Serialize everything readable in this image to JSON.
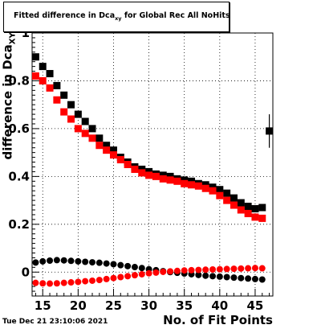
{
  "header": {
    "title_main": "Fitted difference in Dca",
    "title_sub": "xy",
    "title_rest": "for Global Rec All NoHits"
  },
  "footer": {
    "timestamp": "Tue Dec 21 23:10:06 2021"
  },
  "axes": {
    "ylabel_main": "difference in Dca",
    "ylabel_sub": "XY",
    "xlabel": "No. of Fit Points"
  },
  "chart_data": {
    "type": "scatter",
    "xlim": [
      13.5,
      47.5
    ],
    "ylim": [
      -0.1,
      1.0
    ],
    "grid": true,
    "xticks": [
      15,
      20,
      25,
      30,
      35,
      40,
      45
    ],
    "xtick_labels": [
      "15",
      "20",
      "25",
      "30",
      "35",
      "40",
      "45"
    ],
    "yticks": [
      0,
      0.2,
      0.4,
      0.6,
      0.8,
      1.0
    ],
    "ytick_labels": [
      "0",
      "0.2",
      "0.4",
      "0.6",
      "0.8",
      "1"
    ],
    "x": [
      14,
      15,
      16,
      17,
      18,
      19,
      20,
      21,
      22,
      23,
      24,
      25,
      26,
      27,
      28,
      29,
      30,
      31,
      32,
      33,
      34,
      35,
      36,
      37,
      38,
      39,
      40,
      41,
      42,
      43,
      44,
      45,
      46
    ],
    "series": [
      {
        "color": "#000000",
        "marker": "square",
        "values": [
          0.9,
          0.86,
          0.83,
          0.78,
          0.74,
          0.7,
          0.66,
          0.63,
          0.6,
          0.56,
          0.53,
          0.51,
          0.48,
          0.46,
          0.44,
          0.43,
          0.42,
          0.41,
          0.405,
          0.4,
          0.39,
          0.385,
          0.38,
          0.37,
          0.365,
          0.355,
          0.345,
          0.33,
          0.31,
          0.29,
          0.275,
          0.265,
          0.27
        ]
      },
      {
        "color": "#ff0000",
        "marker": "square",
        "values": [
          0.82,
          0.8,
          0.77,
          0.72,
          0.67,
          0.64,
          0.6,
          0.58,
          0.56,
          0.53,
          0.51,
          0.49,
          0.47,
          0.45,
          0.43,
          0.415,
          0.405,
          0.4,
          0.39,
          0.385,
          0.38,
          0.37,
          0.365,
          0.36,
          0.35,
          0.34,
          0.32,
          0.3,
          0.28,
          0.26,
          0.245,
          0.23,
          0.225
        ]
      },
      {
        "color": "#000000",
        "marker": "circle",
        "values": [
          0.04,
          0.045,
          0.048,
          0.05,
          0.049,
          0.047,
          0.045,
          0.043,
          0.041,
          0.039,
          0.036,
          0.033,
          0.029,
          0.025,
          0.021,
          0.017,
          0.012,
          0.008,
          0.004,
          0.0,
          -0.003,
          -0.006,
          -0.009,
          -0.012,
          -0.015,
          -0.017,
          -0.019,
          -0.021,
          -0.023,
          -0.025,
          -0.027,
          -0.029,
          -0.031
        ]
      },
      {
        "color": "#ff0000",
        "marker": "circle",
        "values": [
          -0.045,
          -0.047,
          -0.048,
          -0.047,
          -0.045,
          -0.043,
          -0.041,
          -0.038,
          -0.036,
          -0.033,
          -0.029,
          -0.025,
          -0.021,
          -0.017,
          -0.013,
          -0.009,
          -0.005,
          -0.002,
          0.001,
          0.003,
          0.005,
          0.007,
          0.008,
          0.009,
          0.01,
          0.011,
          0.012,
          0.013,
          0.014,
          0.015,
          0.016,
          0.017,
          0.016
        ]
      }
    ],
    "extra_point": {
      "x": 47,
      "y": 0.59,
      "y_err": 0.07,
      "color": "#000000",
      "marker": "square"
    }
  }
}
